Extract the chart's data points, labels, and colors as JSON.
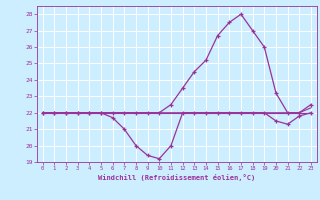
{
  "xlabel": "Windchill (Refroidissement éolien,°C)",
  "background_color": "#cceeff",
  "grid_color": "#ffffff",
  "line_color": "#993399",
  "hours": [
    0,
    1,
    2,
    3,
    4,
    5,
    6,
    7,
    8,
    9,
    10,
    11,
    12,
    13,
    14,
    15,
    16,
    17,
    18,
    19,
    20,
    21,
    22,
    23
  ],
  "temp": [
    22.0,
    22.0,
    22.0,
    22.0,
    22.0,
    22.0,
    22.0,
    22.0,
    22.0,
    22.0,
    22.0,
    22.5,
    23.5,
    24.5,
    25.2,
    26.7,
    27.5,
    28.0,
    27.0,
    26.0,
    23.2,
    22.0,
    22.0,
    22.5
  ],
  "windchill": [
    22.0,
    22.0,
    22.0,
    22.0,
    22.0,
    22.0,
    21.7,
    21.0,
    20.0,
    19.4,
    19.2,
    20.0,
    22.0,
    22.0,
    22.0,
    22.0,
    22.0,
    22.0,
    22.0,
    22.0,
    21.5,
    21.3,
    21.8,
    22.0
  ],
  "line3": [
    22.0,
    22.0,
    22.0,
    22.0,
    22.0,
    22.0,
    22.0,
    22.0,
    22.0,
    22.0,
    22.0,
    22.0,
    22.0,
    22.0,
    22.0,
    22.0,
    22.0,
    22.0,
    22.0,
    22.0,
    22.0,
    22.0,
    22.0,
    22.3
  ],
  "line4": [
    22.0,
    22.0,
    22.0,
    22.0,
    22.0,
    22.0,
    22.0,
    22.0,
    22.0,
    22.0,
    22.0,
    22.0,
    22.0,
    22.0,
    22.0,
    22.0,
    22.0,
    22.0,
    22.0,
    22.0,
    22.0,
    22.0,
    22.0,
    22.0
  ],
  "ylim_min": 19,
  "ylim_max": 28.5,
  "xlim_min": -0.5,
  "xlim_max": 23.5,
  "yticks": [
    19,
    20,
    21,
    22,
    23,
    24,
    25,
    26,
    27,
    28
  ],
  "xticks": [
    0,
    1,
    2,
    3,
    4,
    5,
    6,
    7,
    8,
    9,
    10,
    11,
    12,
    13,
    14,
    15,
    16,
    17,
    18,
    19,
    20,
    21,
    22,
    23
  ]
}
